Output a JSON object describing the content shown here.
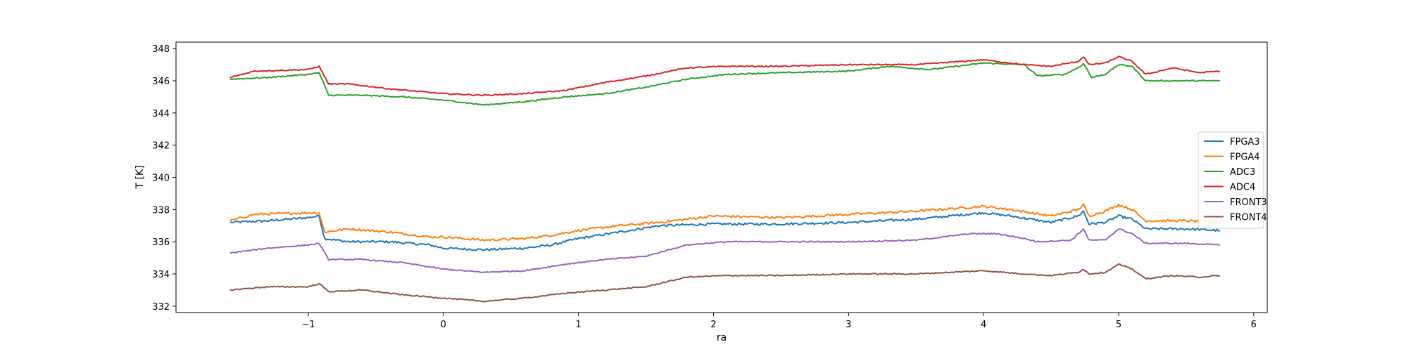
{
  "chart_data": {
    "type": "line",
    "xlabel": "ra",
    "ylabel": "T [K]",
    "xlim": [
      -1.98,
      6.1
    ],
    "ylim": [
      331.6,
      348.4
    ],
    "xticks": [
      -1,
      0,
      1,
      2,
      3,
      4,
      5,
      6
    ],
    "yticks": [
      332,
      334,
      336,
      338,
      340,
      342,
      344,
      346,
      348
    ],
    "xtick_labels": [
      "−1",
      "0",
      "1",
      "2",
      "3",
      "4",
      "5",
      "6"
    ],
    "ytick_labels": [
      "332",
      "334",
      "336",
      "338",
      "340",
      "342",
      "344",
      "346",
      "348"
    ],
    "grid": false,
    "legend_position": "center-right",
    "series": [
      {
        "name": "FPGA3",
        "color": "#1f77b4",
        "points": [
          [
            -1.58,
            337.2
          ],
          [
            -1.3,
            337.3
          ],
          [
            -1.0,
            337.5
          ],
          [
            -0.92,
            337.6
          ],
          [
            -0.88,
            336.2
          ],
          [
            -0.7,
            336.0
          ],
          [
            -0.4,
            336.0
          ],
          [
            -0.1,
            335.8
          ],
          [
            0.0,
            335.6
          ],
          [
            0.3,
            335.5
          ],
          [
            0.6,
            335.6
          ],
          [
            0.8,
            335.8
          ],
          [
            1.0,
            336.2
          ],
          [
            1.3,
            336.6
          ],
          [
            1.6,
            337.0
          ],
          [
            2.0,
            337.1
          ],
          [
            2.5,
            337.1
          ],
          [
            3.0,
            337.2
          ],
          [
            3.5,
            337.4
          ],
          [
            4.0,
            337.8
          ],
          [
            4.2,
            337.6
          ],
          [
            4.5,
            337.2
          ],
          [
            4.7,
            337.6
          ],
          [
            4.74,
            337.9
          ],
          [
            4.78,
            337.1
          ],
          [
            4.9,
            337.2
          ],
          [
            5.0,
            337.6
          ],
          [
            5.1,
            337.4
          ],
          [
            5.2,
            336.8
          ],
          [
            5.5,
            336.8
          ],
          [
            5.75,
            336.7
          ]
        ]
      },
      {
        "name": "FPGA4",
        "color": "#ff7f0e",
        "points": [
          [
            -1.58,
            337.3
          ],
          [
            -1.4,
            337.7
          ],
          [
            -1.0,
            337.8
          ],
          [
            -0.92,
            337.8
          ],
          [
            -0.88,
            336.6
          ],
          [
            -0.7,
            336.8
          ],
          [
            -0.4,
            336.6
          ],
          [
            -0.1,
            336.3
          ],
          [
            0.0,
            336.3
          ],
          [
            0.3,
            336.1
          ],
          [
            0.6,
            336.2
          ],
          [
            0.8,
            336.4
          ],
          [
            1.0,
            336.7
          ],
          [
            1.3,
            337.0
          ],
          [
            1.6,
            337.2
          ],
          [
            2.0,
            337.6
          ],
          [
            2.5,
            337.5
          ],
          [
            3.0,
            337.7
          ],
          [
            3.5,
            337.9
          ],
          [
            4.0,
            338.2
          ],
          [
            4.2,
            338.0
          ],
          [
            4.5,
            337.6
          ],
          [
            4.7,
            338.0
          ],
          [
            4.74,
            338.3
          ],
          [
            4.78,
            337.6
          ],
          [
            4.9,
            337.9
          ],
          [
            5.0,
            338.3
          ],
          [
            5.1,
            338.0
          ],
          [
            5.2,
            337.3
          ],
          [
            5.5,
            337.3
          ],
          [
            5.75,
            337.2
          ]
        ]
      },
      {
        "name": "ADC3",
        "color": "#2ca02c",
        "points": [
          [
            -1.58,
            346.1
          ],
          [
            -1.3,
            346.2
          ],
          [
            -1.0,
            346.4
          ],
          [
            -0.92,
            346.5
          ],
          [
            -0.85,
            345.1
          ],
          [
            -0.6,
            345.1
          ],
          [
            -0.3,
            345.0
          ],
          [
            0.0,
            344.8
          ],
          [
            0.3,
            344.5
          ],
          [
            0.6,
            344.7
          ],
          [
            0.9,
            345.0
          ],
          [
            1.2,
            345.2
          ],
          [
            1.5,
            345.6
          ],
          [
            1.8,
            346.1
          ],
          [
            2.1,
            346.4
          ],
          [
            2.5,
            346.5
          ],
          [
            3.0,
            346.6
          ],
          [
            3.3,
            346.9
          ],
          [
            3.6,
            346.7
          ],
          [
            4.0,
            347.1
          ],
          [
            4.3,
            347.0
          ],
          [
            4.4,
            346.3
          ],
          [
            4.6,
            346.4
          ],
          [
            4.72,
            346.9
          ],
          [
            4.74,
            347.1
          ],
          [
            4.8,
            346.2
          ],
          [
            4.9,
            346.4
          ],
          [
            5.0,
            347.0
          ],
          [
            5.1,
            346.9
          ],
          [
            5.2,
            346.0
          ],
          [
            5.5,
            346.0
          ],
          [
            5.75,
            346.0
          ]
        ]
      },
      {
        "name": "ADC4",
        "color": "#d62728",
        "points": [
          [
            -1.58,
            346.2
          ],
          [
            -1.4,
            346.6
          ],
          [
            -1.0,
            346.7
          ],
          [
            -0.92,
            346.9
          ],
          [
            -0.85,
            345.8
          ],
          [
            -0.7,
            345.8
          ],
          [
            -0.4,
            345.5
          ],
          [
            0.0,
            345.2
          ],
          [
            0.3,
            345.1
          ],
          [
            0.6,
            345.2
          ],
          [
            0.9,
            345.4
          ],
          [
            1.2,
            345.9
          ],
          [
            1.5,
            346.3
          ],
          [
            1.8,
            346.8
          ],
          [
            2.1,
            346.9
          ],
          [
            2.5,
            346.9
          ],
          [
            3.0,
            347.0
          ],
          [
            3.5,
            347.0
          ],
          [
            4.0,
            347.3
          ],
          [
            4.3,
            347.0
          ],
          [
            4.5,
            346.9
          ],
          [
            4.7,
            347.2
          ],
          [
            4.74,
            347.5
          ],
          [
            4.78,
            347.0
          ],
          [
            4.9,
            347.1
          ],
          [
            5.0,
            347.5
          ],
          [
            5.1,
            347.2
          ],
          [
            5.2,
            346.4
          ],
          [
            5.4,
            346.8
          ],
          [
            5.6,
            346.5
          ],
          [
            5.75,
            346.6
          ]
        ]
      },
      {
        "name": "FRONT3",
        "color": "#9467bd",
        "points": [
          [
            -1.58,
            335.3
          ],
          [
            -1.3,
            335.6
          ],
          [
            -1.0,
            335.8
          ],
          [
            -0.92,
            335.9
          ],
          [
            -0.85,
            334.9
          ],
          [
            -0.6,
            334.9
          ],
          [
            -0.3,
            334.7
          ],
          [
            0.0,
            334.3
          ],
          [
            0.3,
            334.1
          ],
          [
            0.6,
            334.2
          ],
          [
            0.9,
            334.6
          ],
          [
            1.2,
            334.9
          ],
          [
            1.5,
            335.1
          ],
          [
            1.8,
            335.8
          ],
          [
            2.1,
            336.0
          ],
          [
            2.5,
            336.0
          ],
          [
            3.0,
            336.0
          ],
          [
            3.5,
            336.1
          ],
          [
            3.9,
            336.5
          ],
          [
            4.1,
            336.5
          ],
          [
            4.3,
            336.2
          ],
          [
            4.4,
            336.0
          ],
          [
            4.65,
            336.1
          ],
          [
            4.74,
            336.8
          ],
          [
            4.78,
            336.1
          ],
          [
            4.9,
            336.1
          ],
          [
            5.0,
            336.8
          ],
          [
            5.1,
            336.5
          ],
          [
            5.2,
            335.9
          ],
          [
            5.5,
            335.9
          ],
          [
            5.75,
            335.8
          ]
        ]
      },
      {
        "name": "FRONT4",
        "color": "#8c564b",
        "points": [
          [
            -1.58,
            333.0
          ],
          [
            -1.3,
            333.2
          ],
          [
            -1.0,
            333.2
          ],
          [
            -0.92,
            333.4
          ],
          [
            -0.85,
            332.9
          ],
          [
            -0.6,
            333.0
          ],
          [
            -0.3,
            332.7
          ],
          [
            0.0,
            332.5
          ],
          [
            0.3,
            332.3
          ],
          [
            0.6,
            332.5
          ],
          [
            0.9,
            332.8
          ],
          [
            1.2,
            333.0
          ],
          [
            1.5,
            333.2
          ],
          [
            1.8,
            333.8
          ],
          [
            2.1,
            333.9
          ],
          [
            2.5,
            333.9
          ],
          [
            3.0,
            334.0
          ],
          [
            3.5,
            334.0
          ],
          [
            4.0,
            334.2
          ],
          [
            4.3,
            334.0
          ],
          [
            4.5,
            333.9
          ],
          [
            4.7,
            334.1
          ],
          [
            4.74,
            334.3
          ],
          [
            4.78,
            334.0
          ],
          [
            4.9,
            334.1
          ],
          [
            5.0,
            334.6
          ],
          [
            5.1,
            334.3
          ],
          [
            5.2,
            333.7
          ],
          [
            5.4,
            333.9
          ],
          [
            5.6,
            333.8
          ],
          [
            5.75,
            333.9
          ]
        ]
      }
    ]
  }
}
